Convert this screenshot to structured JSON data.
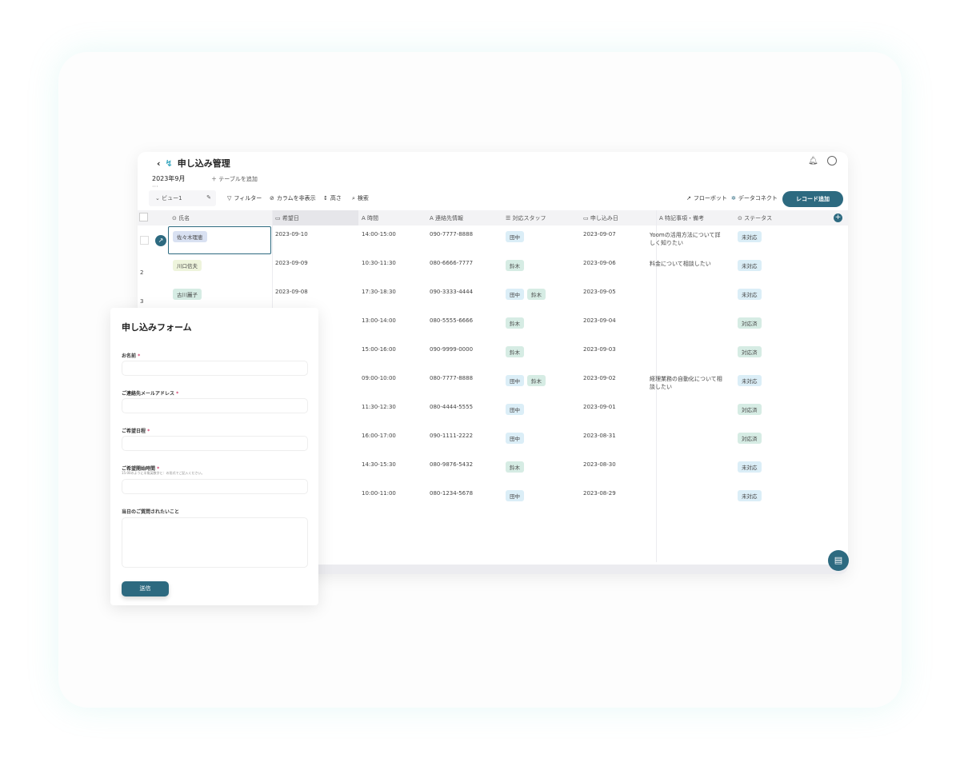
{
  "app": {
    "title": "申し込み管理",
    "tab": "2023年9月",
    "tab_more": "···",
    "add_table": "テーブルを追加",
    "view": "ビュー1",
    "tools": {
      "filter": "フィルター",
      "hide_columns": "カラムを非表示",
      "height": "高さ",
      "search": "検索",
      "flowbot": "フローボット",
      "dataconnect": "データコネクト",
      "add_record": "レコード追加"
    }
  },
  "columns": [
    "氏名",
    "希望日",
    "時間",
    "連絡先情報",
    "対応スタッフ",
    "申し込み日",
    "特記事項・備考",
    "ステータス"
  ],
  "rows": [
    {
      "num": "",
      "name": "佐々木理恵",
      "date": "2023-09-10",
      "time": "14:00-15:00",
      "phone": "090-7777-8888",
      "staff": [
        "田中"
      ],
      "applied": "2023-09-07",
      "note": "Yoomの活用方法について詳しく知りたい",
      "status": "未対応"
    },
    {
      "num": "2",
      "name": "川口信夫",
      "date": "2023-09-09",
      "time": "10:30-11:30",
      "phone": "080-6666-7777",
      "staff": [
        "鈴木"
      ],
      "applied": "2023-09-06",
      "note": "料金について相談したい",
      "status": "未対応"
    },
    {
      "num": "3",
      "name": "古川麗子",
      "date": "2023-09-08",
      "time": "17:30-18:30",
      "phone": "090-3333-4444",
      "staff": [
        "田中",
        "鈴木"
      ],
      "applied": "2023-09-05",
      "note": "",
      "status": "未対応"
    },
    {
      "num": "",
      "name": "",
      "date": "",
      "time": "13:00-14:00",
      "phone": "080-5555-6666",
      "staff": [
        "鈴木"
      ],
      "applied": "2023-09-04",
      "note": "",
      "status": "対応済"
    },
    {
      "num": "",
      "name": "",
      "date": "",
      "time": "15:00-16:00",
      "phone": "090-9999-0000",
      "staff": [
        "鈴木"
      ],
      "applied": "2023-09-03",
      "note": "",
      "status": "対応済"
    },
    {
      "num": "",
      "name": "",
      "date": "",
      "time": "09:00-10:00",
      "phone": "080-7777-8888",
      "staff": [
        "田中",
        "鈴木"
      ],
      "applied": "2023-09-02",
      "note": "経理業務の自動化について相談したい",
      "status": "未対応"
    },
    {
      "num": "",
      "name": "",
      "date": "",
      "time": "11:30-12:30",
      "phone": "080-4444-5555",
      "staff": [
        "田中"
      ],
      "applied": "2023-09-01",
      "note": "",
      "status": "対応済"
    },
    {
      "num": "",
      "name": "",
      "date": "",
      "time": "16:00-17:00",
      "phone": "090-1111-2222",
      "staff": [
        "田中"
      ],
      "applied": "2023-08-31",
      "note": "",
      "status": "対応済"
    },
    {
      "num": "",
      "name": "",
      "date": "",
      "time": "14:30-15:30",
      "phone": "080-9876-5432",
      "staff": [
        "鈴木"
      ],
      "applied": "2023-08-30",
      "note": "",
      "status": "未対応"
    },
    {
      "num": "",
      "name": "",
      "date": "",
      "time": "10:00-11:00",
      "phone": "080-1234-5678",
      "staff": [
        "田中"
      ],
      "applied": "2023-08-29",
      "note": "",
      "status": "未対応"
    }
  ],
  "form": {
    "title": "申し込みフォーム",
    "fields": [
      {
        "label": "お名前",
        "required": "*"
      },
      {
        "label": "ご連絡先メールアドレス",
        "required": "*"
      },
      {
        "label": "ご希望日程",
        "required": "*"
      },
      {
        "label": "ご希望開始時間",
        "required": "*",
        "hint": "15:00のように半角英数字と：の形式でご記入ください。"
      },
      {
        "label": "当日のご質問されたいこと",
        "required": ""
      }
    ],
    "submit": "送信"
  },
  "colors": {
    "accent": "#2d6a80",
    "tag_tanaka": "#dbeef7",
    "tag_suzuki": "#d6ece4"
  }
}
